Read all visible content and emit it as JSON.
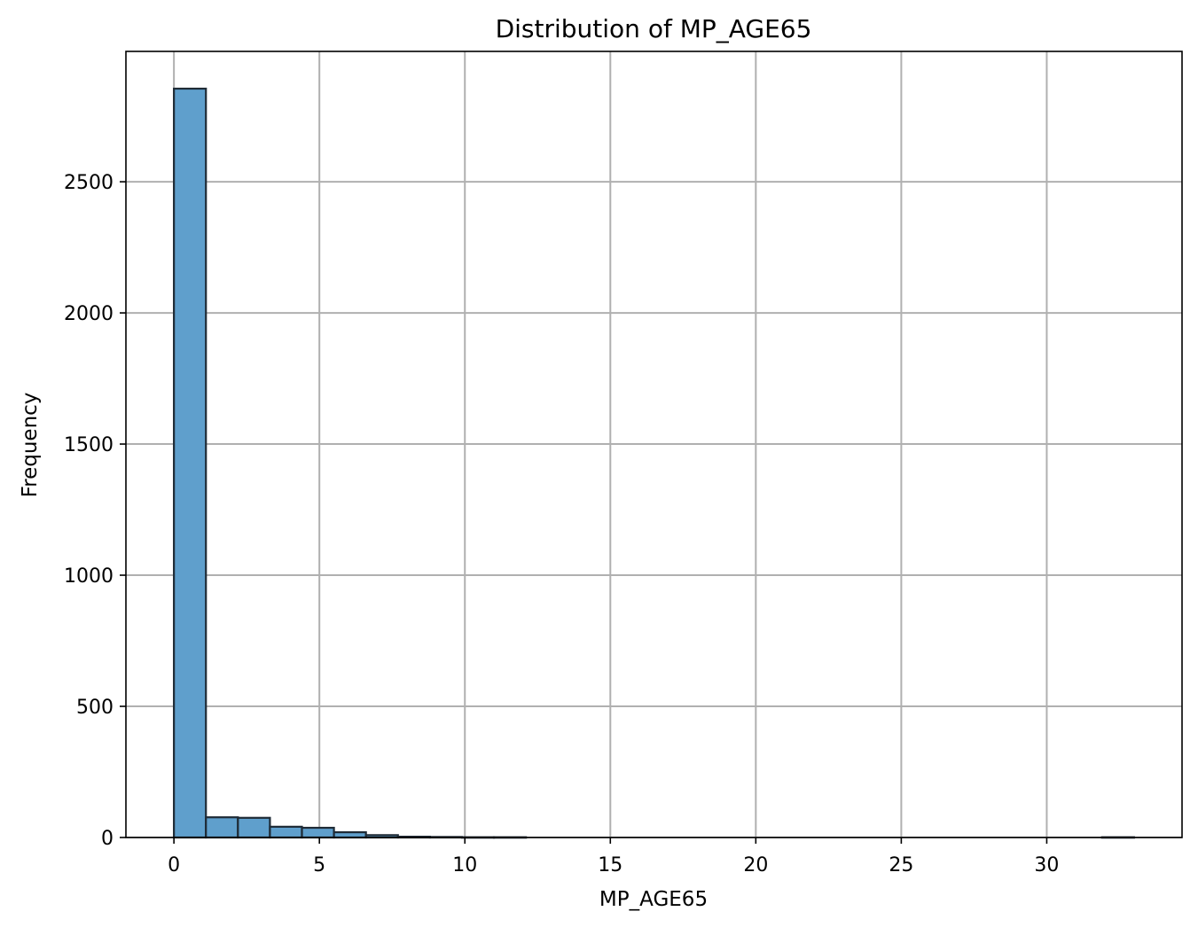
{
  "chart_data": {
    "type": "bar",
    "title": "Distribution of MP_AGE65",
    "xlabel": "MP_AGE65",
    "ylabel": "Frequency",
    "bin_edges": [
      0,
      1.1,
      2.2,
      3.3,
      4.4,
      5.5,
      6.6,
      7.7,
      8.8,
      9.9,
      11.0,
      12.1,
      13.2,
      14.3,
      15.4,
      16.5,
      17.6,
      18.7,
      19.8,
      20.9,
      22.0,
      23.1,
      24.2,
      25.3,
      26.4,
      27.5,
      28.6,
      29.7,
      30.8,
      31.9,
      33.0
    ],
    "values": [
      2855,
      77,
      75,
      41,
      37,
      20,
      9,
      3,
      2,
      1,
      1,
      0,
      0,
      0,
      0,
      0,
      0,
      0,
      0,
      0,
      0,
      0,
      0,
      0,
      0,
      0,
      0,
      0,
      0,
      1
    ],
    "xlim": [
      -1.65,
      34.65
    ],
    "ylim": [
      0,
      2997
    ],
    "xticks": [
      0,
      5,
      10,
      15,
      20,
      25,
      30
    ],
    "xtick_labels": [
      "0",
      "5",
      "10",
      "15",
      "20",
      "25",
      "30"
    ],
    "yticks": [
      0,
      500,
      1000,
      1500,
      2000,
      2500
    ],
    "ytick_labels": [
      "0",
      "500",
      "1000",
      "1500",
      "2000",
      "2500"
    ],
    "grid": true,
    "bar_color": "#5f9fcc",
    "bar_edge_color": "#1f2b36"
  }
}
